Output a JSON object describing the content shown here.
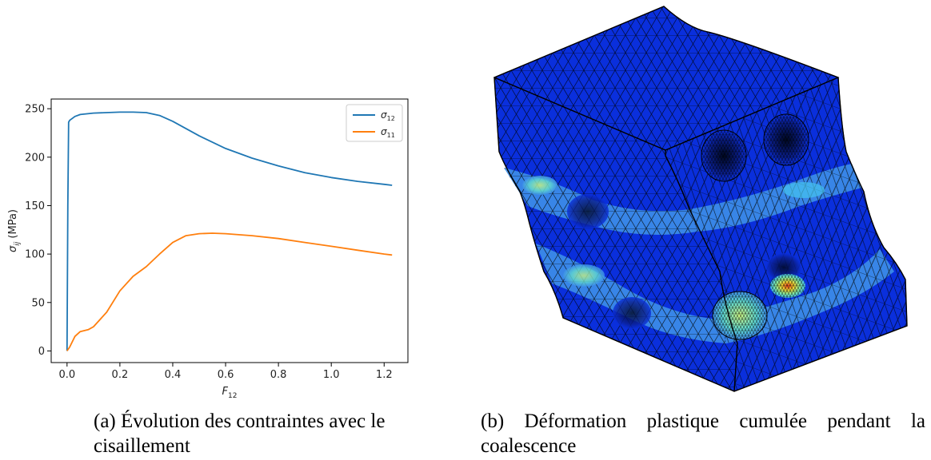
{
  "figure_a": {
    "caption": "(a) Évolution des contraintes avec le cisaillement"
  },
  "figure_b": {
    "caption": "(b) Déformation plastique cumulée pendant la coalescence"
  },
  "chart_data": {
    "type": "line",
    "title": "",
    "xlabel": "F",
    "xlabel_sub": "12",
    "ylabel": "σ",
    "ylabel_sub": "ij",
    "ylabel_unit": " (MPa)",
    "xlim": [
      -0.06,
      1.29
    ],
    "ylim": [
      -12,
      260
    ],
    "x_ticks": [
      0.0,
      0.2,
      0.4,
      0.6,
      0.8,
      1.0,
      1.2
    ],
    "x_tick_labels": [
      "0.0",
      "0.2",
      "0.4",
      "0.6",
      "0.8",
      "1.0",
      "1.2"
    ],
    "y_ticks": [
      0,
      50,
      100,
      150,
      200,
      250
    ],
    "y_tick_labels": [
      "0",
      "50",
      "100",
      "150",
      "200",
      "250"
    ],
    "grid": false,
    "legend_position": "top-right",
    "series": [
      {
        "name": "σ",
        "name_sub": "12",
        "color": "#1f77b4",
        "x": [
          0.0,
          0.003,
          0.006,
          0.01,
          0.03,
          0.05,
          0.1,
          0.15,
          0.2,
          0.25,
          0.3,
          0.35,
          0.4,
          0.5,
          0.6,
          0.7,
          0.8,
          0.9,
          1.0,
          1.1,
          1.2,
          1.23
        ],
        "y": [
          0,
          150,
          236,
          238,
          242,
          244,
          245.5,
          246,
          246.5,
          246.5,
          246,
          243,
          237,
          222,
          209,
          199,
          191,
          184,
          179,
          175,
          172,
          171
        ]
      },
      {
        "name": "σ",
        "name_sub": "11",
        "color": "#ff7f0e",
        "x": [
          0.0,
          0.01,
          0.03,
          0.05,
          0.08,
          0.1,
          0.15,
          0.2,
          0.25,
          0.3,
          0.35,
          0.4,
          0.45,
          0.5,
          0.55,
          0.6,
          0.7,
          0.8,
          0.9,
          1.0,
          1.1,
          1.2,
          1.23
        ],
        "y": [
          0,
          4,
          15,
          20,
          22,
          25,
          40,
          62,
          77,
          87,
          100,
          112,
          119,
          121,
          121.5,
          121,
          119,
          116,
          112,
          108,
          104,
          100,
          99
        ]
      }
    ]
  },
  "mesh_colors": {
    "base": "#0a2fdc",
    "band": "#3d8fe8",
    "band_light": "#46c3f0",
    "hot_green": "#8fe8a0",
    "hot_yellow": "#f0e040",
    "hot_red": "#e85020",
    "edge": "#000000"
  }
}
